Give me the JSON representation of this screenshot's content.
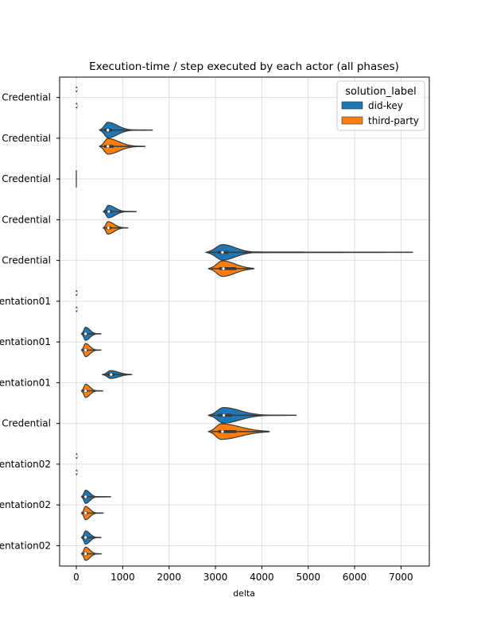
{
  "chart_data": {
    "type": "violin",
    "orientation": "horizontal",
    "title": "Execution-time / step executed by each actor (all phases)",
    "xlabel": "delta",
    "ylabel": "",
    "xlim": [
      -360,
      7610
    ],
    "xticks": [
      0,
      1000,
      2000,
      3000,
      4000,
      5000,
      6000,
      7000
    ],
    "grid": true,
    "legend": {
      "title": "solution_label",
      "placement": "top-right",
      "entries": [
        {
          "label": "did-key",
          "color": "#1f77b4"
        },
        {
          "label": "third-party",
          "color": "#ff7f0e"
        }
      ]
    },
    "categories": [
      "Credential",
      "Credential",
      "Credential",
      "Credential",
      "Credential",
      "entation01",
      "entation01",
      "entation01",
      "Credential",
      "entation02",
      "entation02",
      "entation02"
    ],
    "series": [
      {
        "name": "did-key",
        "color": "#1f77b4",
        "violins": [
          {
            "min": 0,
            "q1": 2,
            "median": 4,
            "q3": 8,
            "max": 20,
            "kde_lo": -15,
            "kde_hi": 35,
            "mode": 5,
            "width": 0.3
          },
          {
            "min": 520,
            "q1": 600,
            "median": 680,
            "q3": 770,
            "max": 1640,
            "kde_lo": 500,
            "kde_hi": 1650,
            "mode": 680,
            "width": 1.0
          },
          {
            "min": 0,
            "q1": 0,
            "median": 0,
            "q3": 0,
            "max": 0,
            "kde_lo": 0,
            "kde_hi": 0,
            "mode": 0,
            "width": 0.0
          },
          {
            "min": 580,
            "q1": 640,
            "median": 700,
            "q3": 760,
            "max": 1290,
            "kde_lo": 580,
            "kde_hi": 1300,
            "mode": 690,
            "width": 0.8
          },
          {
            "min": 2850,
            "q1": 3050,
            "median": 3150,
            "q3": 3280,
            "max": 7240,
            "kde_lo": 2800,
            "kde_hi": 7260,
            "mode": 3150,
            "width": 1.0
          },
          {
            "min": 0,
            "q1": 2,
            "median": 4,
            "q3": 8,
            "max": 20,
            "kde_lo": -15,
            "kde_hi": 35,
            "mode": 5,
            "width": 0.3
          },
          {
            "min": 120,
            "q1": 165,
            "median": 200,
            "q3": 240,
            "max": 530,
            "kde_lo": 110,
            "kde_hi": 540,
            "mode": 200,
            "width": 0.85
          },
          {
            "min": 570,
            "q1": 680,
            "median": 750,
            "q3": 820,
            "max": 1180,
            "kde_lo": 560,
            "kde_hi": 1190,
            "mode": 740,
            "width": 0.5
          },
          {
            "min": 2880,
            "q1": 3050,
            "median": 3180,
            "q3": 3350,
            "max": 4730,
            "kde_lo": 2850,
            "kde_hi": 4750,
            "mode": 3170,
            "width": 1.0
          },
          {
            "min": 0,
            "q1": 2,
            "median": 4,
            "q3": 8,
            "max": 20,
            "kde_lo": -15,
            "kde_hi": 35,
            "mode": 5,
            "width": 0.3
          },
          {
            "min": 120,
            "q1": 165,
            "median": 200,
            "q3": 240,
            "max": 740,
            "kde_lo": 110,
            "kde_hi": 750,
            "mode": 200,
            "width": 0.85
          },
          {
            "min": 120,
            "q1": 165,
            "median": 200,
            "q3": 240,
            "max": 530,
            "kde_lo": 110,
            "kde_hi": 540,
            "mode": 200,
            "width": 0.85
          }
        ]
      },
      {
        "name": "third-party",
        "color": "#ff7f0e",
        "violins": [
          {
            "min": 0,
            "q1": 2,
            "median": 4,
            "q3": 8,
            "max": 20,
            "kde_lo": -15,
            "kde_hi": 35,
            "mode": 5,
            "width": 0.3
          },
          {
            "min": 520,
            "q1": 600,
            "median": 680,
            "q3": 800,
            "max": 1480,
            "kde_lo": 500,
            "kde_hi": 1490,
            "mode": 680,
            "width": 1.0
          },
          {
            "min": 0,
            "q1": 0,
            "median": 0,
            "q3": 0,
            "max": 0,
            "kde_lo": 0,
            "kde_hi": 0,
            "mode": 0,
            "width": 0.0
          },
          {
            "min": 580,
            "q1": 640,
            "median": 690,
            "q3": 750,
            "max": 1110,
            "kde_lo": 580,
            "kde_hi": 1120,
            "mode": 680,
            "width": 0.8
          },
          {
            "min": 2900,
            "q1": 3080,
            "median": 3170,
            "q3": 3450,
            "max": 3820,
            "kde_lo": 2850,
            "kde_hi": 3830,
            "mode": 3150,
            "width": 1.0
          },
          {
            "min": 0,
            "q1": 2,
            "median": 4,
            "q3": 8,
            "max": 20,
            "kde_lo": -15,
            "kde_hi": 35,
            "mode": 5,
            "width": 0.3
          },
          {
            "min": 120,
            "q1": 165,
            "median": 200,
            "q3": 240,
            "max": 530,
            "kde_lo": 110,
            "kde_hi": 540,
            "mode": 200,
            "width": 0.85
          },
          {
            "min": 120,
            "q1": 165,
            "median": 200,
            "q3": 240,
            "max": 570,
            "kde_lo": 110,
            "kde_hi": 580,
            "mode": 200,
            "width": 0.85
          },
          {
            "min": 2900,
            "q1": 3060,
            "median": 3150,
            "q3": 3450,
            "max": 4150,
            "kde_lo": 2850,
            "kde_hi": 4160,
            "mode": 3120,
            "width": 1.0
          },
          {
            "min": 0,
            "q1": 2,
            "median": 4,
            "q3": 8,
            "max": 20,
            "kde_lo": -15,
            "kde_hi": 35,
            "mode": 5,
            "width": 0.3
          },
          {
            "min": 120,
            "q1": 165,
            "median": 200,
            "q3": 240,
            "max": 580,
            "kde_lo": 110,
            "kde_hi": 590,
            "mode": 200,
            "width": 0.85
          },
          {
            "min": 120,
            "q1": 165,
            "median": 200,
            "q3": 240,
            "max": 540,
            "kde_lo": 110,
            "kde_hi": 550,
            "mode": 200,
            "width": 0.85
          }
        ]
      }
    ]
  }
}
